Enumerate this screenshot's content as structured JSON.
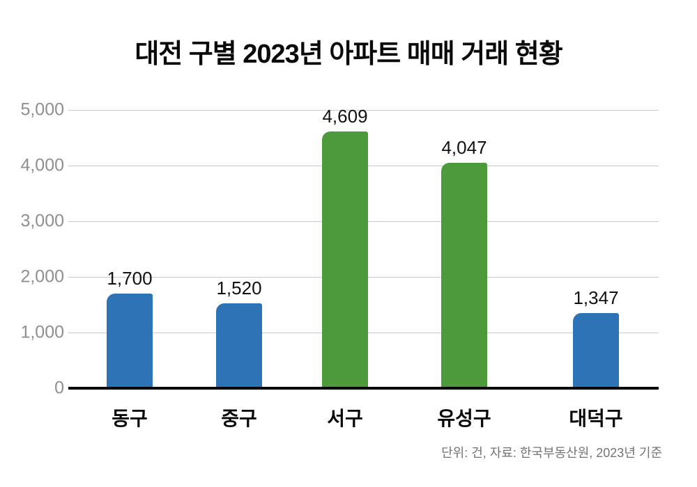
{
  "title": "대전 구별 2023년 아파트 매매 거래 현황",
  "footnote": "단위: 건, 자료: 한국부동산원, 2023년 기준",
  "colors": {
    "bar_blue": "#2e73b5",
    "bar_green": "#4c9a3c",
    "gridline": "#c9c9c9",
    "axis_line": "#000000",
    "tick_label": "#8f8f8f",
    "value_label": "#111111",
    "footnote_text": "#737373"
  },
  "chart_data": {
    "type": "bar",
    "title": "대전 구별 2023년 아파트 매매 거래 현황",
    "categories": [
      "동구",
      "중구",
      "서구",
      "유성구",
      "대덕구"
    ],
    "values": [
      1700,
      1520,
      4609,
      4047,
      1347
    ],
    "value_labels": [
      "1,700",
      "1,520",
      "4,609",
      "4,047",
      "1,347"
    ],
    "bar_colors": [
      "#2e73b5",
      "#2e73b5",
      "#4c9a3c",
      "#4c9a3c",
      "#2e73b5"
    ],
    "xlabel": "",
    "ylabel": "",
    "ylim": [
      0,
      5000
    ],
    "ytick_interval": 1000,
    "ytick_labels": [
      "0",
      "1,000",
      "2,000",
      "3,000",
      "4,000",
      "5,000"
    ],
    "grid": true,
    "legend": "none",
    "unit_note": "단위: 건, 자료: 한국부동산원, 2023년 기준"
  }
}
